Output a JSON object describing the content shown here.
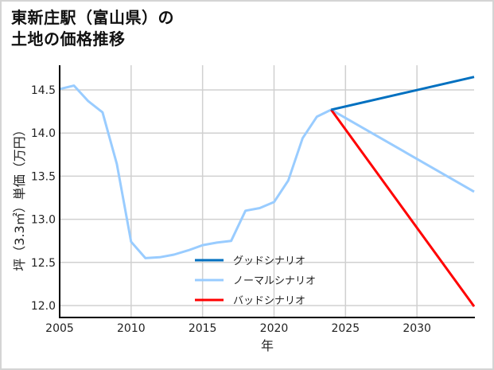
{
  "title": {
    "line1": "東新庄駅（富山県）の",
    "line2": "土地の価格推移"
  },
  "chart_data": {
    "type": "line",
    "title": "東新庄駅（富山県）の土地の価格推移",
    "xlabel": "年",
    "ylabel": "坪（3.3㎡）単価（万円）",
    "xlim": [
      2005,
      2034
    ],
    "ylim": [
      11.88,
      14.78
    ],
    "xticks": [
      2005,
      2010,
      2015,
      2020,
      2025,
      2030
    ],
    "yticks": [
      12.0,
      12.5,
      13.0,
      13.5,
      14.0,
      14.5
    ],
    "ytick_labels": [
      "12.0",
      "12.5",
      "13.0",
      "13.5",
      "14.0",
      "14.5"
    ],
    "grid": true,
    "legend_position": "lower center",
    "series": [
      {
        "name": "グッドシナリオ",
        "color": "#0070c0",
        "x": [
          2024,
          2034
        ],
        "values": [
          14.27,
          14.65
        ]
      },
      {
        "name": "ノーマルシナリオ",
        "color": "#99ccff",
        "x": [
          2005,
          2006,
          2007,
          2008,
          2009,
          2010,
          2011,
          2012,
          2013,
          2014,
          2015,
          2016,
          2017,
          2018,
          2019,
          2020,
          2021,
          2022,
          2023,
          2024,
          2034
        ],
        "values": [
          14.51,
          14.55,
          14.37,
          14.24,
          13.64,
          12.74,
          12.55,
          12.56,
          12.59,
          12.64,
          12.7,
          12.73,
          12.75,
          13.1,
          13.13,
          13.2,
          13.45,
          13.94,
          14.19,
          14.27,
          13.32
        ]
      },
      {
        "name": "バッドシナリオ",
        "color": "#ff0000",
        "x": [
          2024,
          2034
        ],
        "values": [
          14.27,
          11.99
        ]
      }
    ]
  },
  "legend": {
    "items": [
      {
        "label": "グッドシナリオ",
        "color": "#0070c0"
      },
      {
        "label": "ノーマルシナリオ",
        "color": "#99ccff"
      },
      {
        "label": "バッドシナリオ",
        "color": "#ff0000"
      }
    ]
  }
}
